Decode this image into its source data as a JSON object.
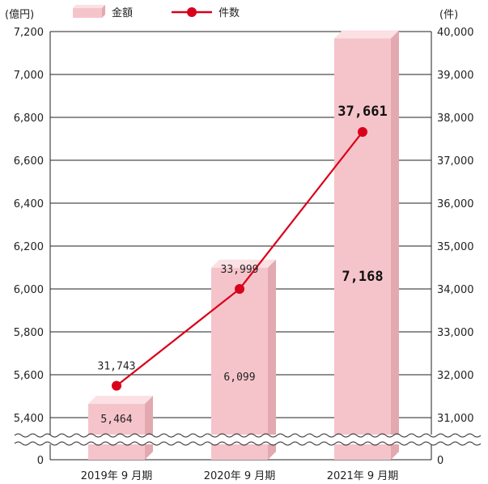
{
  "chart_data": {
    "type": "bar+line",
    "categories": [
      "2019年 9 月期",
      "2020年 9 月期",
      "2021年 9 月期"
    ],
    "series": [
      {
        "name": "金額",
        "type": "bar",
        "axis": "left",
        "values": [
          5464,
          6099,
          7168
        ],
        "labels": [
          "5,464",
          "6,099",
          "7,168"
        ],
        "color": "#f5c4ca"
      },
      {
        "name": "件数",
        "type": "line",
        "axis": "right",
        "values": [
          31743,
          33999,
          37661
        ],
        "labels": [
          "31,743",
          "33,999",
          "37,661"
        ],
        "color": "#d9001b"
      }
    ],
    "y_left": {
      "unit": "(億円)",
      "ticks": [
        "5,400",
        "5,600",
        "5,800",
        "6,000",
        "6,200",
        "6,400",
        "6,600",
        "6,800",
        "7,000",
        "7,200"
      ],
      "tick_values": [
        5400,
        5600,
        5800,
        6000,
        6200,
        6400,
        6600,
        6800,
        7000,
        7200
      ],
      "range": [
        5400,
        7200
      ],
      "zero_label": "0",
      "broken_axis": true
    },
    "y_right": {
      "unit": "(件)",
      "ticks": [
        "31,000",
        "32,000",
        "33,000",
        "34,000",
        "35,000",
        "36,000",
        "37,000",
        "38,000",
        "39,000",
        "40,000"
      ],
      "tick_values": [
        31000,
        32000,
        33000,
        34000,
        35000,
        36000,
        37000,
        38000,
        39000,
        40000
      ],
      "range": [
        31000,
        40000
      ],
      "zero_label": "0",
      "broken_axis": true
    },
    "grid": true,
    "legend_position": "top-left",
    "highlight_last": true
  }
}
